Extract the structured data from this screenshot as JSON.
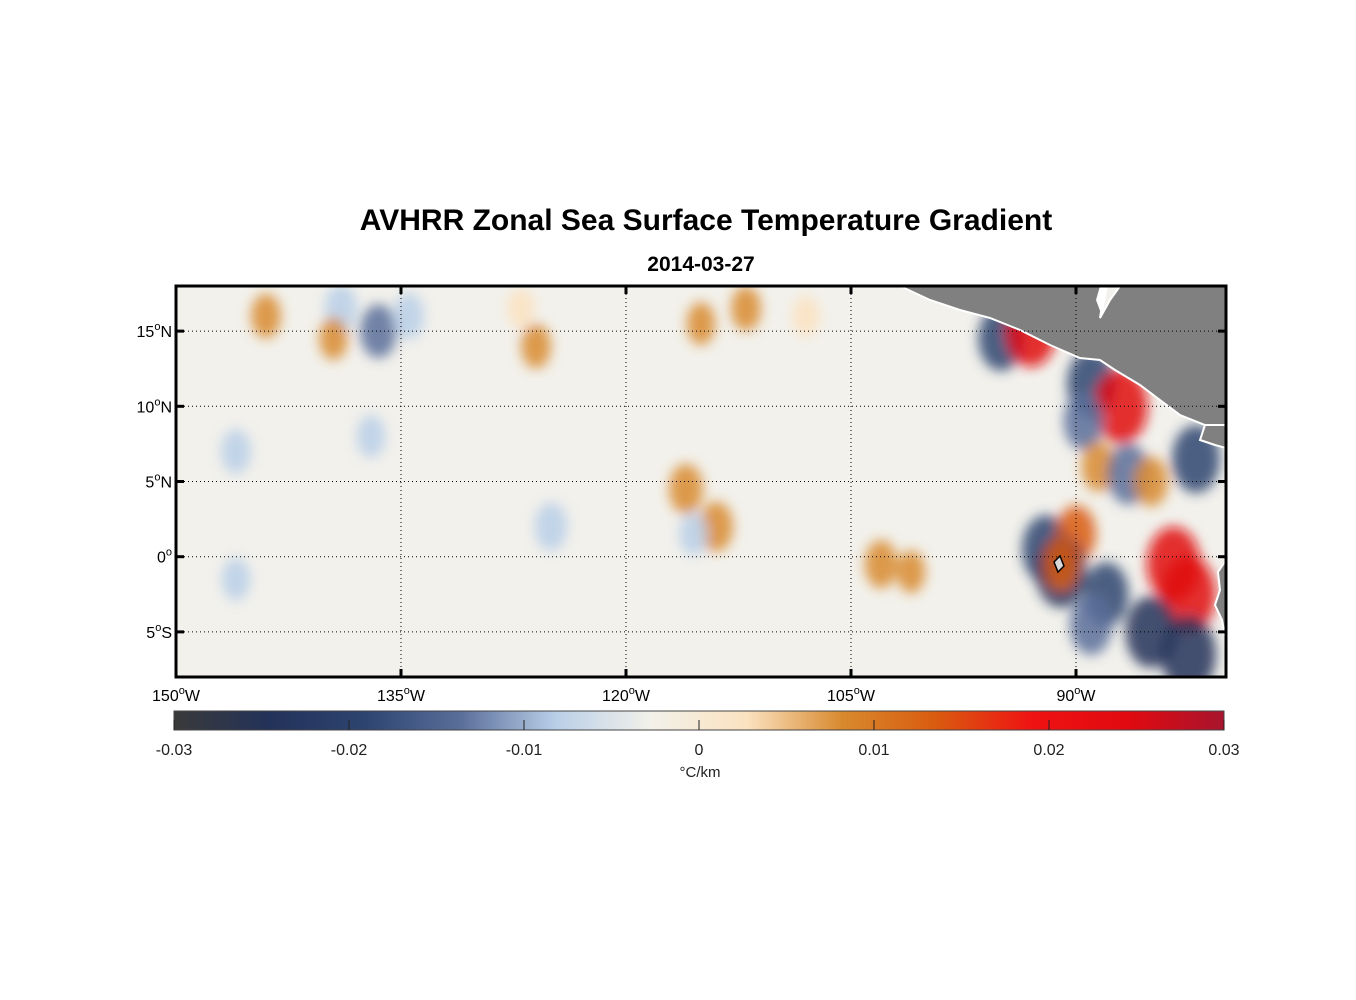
{
  "title": "AVHRR Zonal Sea Surface Temperature Gradient",
  "date": "2014-03-27",
  "lon_ticks": [
    {
      "value": -150,
      "deg": "150",
      "hemi": "W"
    },
    {
      "value": -135,
      "deg": "135",
      "hemi": "W"
    },
    {
      "value": -120,
      "deg": "120",
      "hemi": "W"
    },
    {
      "value": -105,
      "deg": "105",
      "hemi": "W"
    },
    {
      "value": -90,
      "deg": "90",
      "hemi": "W"
    }
  ],
  "lat_ticks": [
    {
      "value": 15,
      "deg": "15",
      "hemi": "N"
    },
    {
      "value": 10,
      "deg": "10",
      "hemi": "N"
    },
    {
      "value": 5,
      "deg": "5",
      "hemi": "N"
    },
    {
      "value": 0,
      "deg": "0",
      "hemi": ""
    },
    {
      "value": -5,
      "deg": "5",
      "hemi": "S"
    }
  ],
  "extent": {
    "lon_min": -150,
    "lon_max": -80,
    "lat_min": -8,
    "lat_max": 18
  },
  "colorbar": {
    "ticks": [
      "-0.03",
      "-0.02",
      "-0.01",
      "0",
      "0.01",
      "0.02",
      "0.03"
    ],
    "unit": "°C/km",
    "range": [
      -0.03,
      0.03
    ],
    "colors": [
      "#3a3a3a",
      "#233259",
      "#2d4470",
      "#5a6e9a",
      "#b9cfe8",
      "#f3f1ea",
      "#fbe2c0",
      "#d8892e",
      "#d95a10",
      "#f01212",
      "#e00a10",
      "#a8142e"
    ]
  },
  "land_color": "#808080",
  "features": [
    {
      "lon": -136.5,
      "lat": 15.0,
      "value": -0.012
    },
    {
      "lon": -139.0,
      "lat": 16.5,
      "value": -0.009
    },
    {
      "lon": -134.5,
      "lat": 16.0,
      "value": -0.008
    },
    {
      "lon": -144.0,
      "lat": 16.0,
      "value": 0.007
    },
    {
      "lon": -139.5,
      "lat": 14.5,
      "value": 0.006
    },
    {
      "lon": -126.0,
      "lat": 14.0,
      "value": 0.007
    },
    {
      "lon": -127.0,
      "lat": 16.5,
      "value": 0.005
    },
    {
      "lon": -115.0,
      "lat": 15.5,
      "value": 0.006
    },
    {
      "lon": -112.0,
      "lat": 16.5,
      "value": 0.007
    },
    {
      "lon": -108.0,
      "lat": 16.0,
      "value": 0.005
    },
    {
      "lon": -146.0,
      "lat": 7.0,
      "value": -0.007
    },
    {
      "lon": -137.0,
      "lat": 8.0,
      "value": -0.006
    },
    {
      "lon": -125.0,
      "lat": 2.0,
      "value": -0.009
    },
    {
      "lon": -116.0,
      "lat": 4.5,
      "value": 0.01
    },
    {
      "lon": -114.0,
      "lat": 2.0,
      "value": 0.01
    },
    {
      "lon": -115.5,
      "lat": 1.5,
      "value": -0.006
    },
    {
      "lon": -103.0,
      "lat": -0.5,
      "value": 0.009
    },
    {
      "lon": -101.0,
      "lat": -1.0,
      "value": 0.006
    },
    {
      "lon": -146.0,
      "lat": -1.5,
      "value": -0.006
    },
    {
      "lon": -95.0,
      "lat": 14.5,
      "value": -0.018
    },
    {
      "lon": -93.0,
      "lat": 15.0,
      "value": 0.022
    },
    {
      "lon": -89.0,
      "lat": 11.5,
      "value": -0.02
    },
    {
      "lon": -87.0,
      "lat": 10.0,
      "value": 0.024
    },
    {
      "lon": -89.5,
      "lat": 9.0,
      "value": -0.014
    },
    {
      "lon": -88.5,
      "lat": 6.0,
      "value": 0.01
    },
    {
      "lon": -86.5,
      "lat": 5.5,
      "value": -0.016
    },
    {
      "lon": -85.0,
      "lat": 5.0,
      "value": 0.01
    },
    {
      "lon": -82.0,
      "lat": 6.5,
      "value": -0.02
    },
    {
      "lon": -92.0,
      "lat": 0.5,
      "value": -0.02
    },
    {
      "lon": -90.0,
      "lat": 1.5,
      "value": 0.014
    },
    {
      "lon": -91.0,
      "lat": -1.0,
      "value": -0.022
    },
    {
      "lon": -91.0,
      "lat": -0.5,
      "value": 0.012
    },
    {
      "lon": -88.0,
      "lat": -2.5,
      "value": -0.018
    },
    {
      "lon": -83.5,
      "lat": -0.5,
      "value": 0.024
    },
    {
      "lon": -82.5,
      "lat": -2.5,
      "value": 0.025
    },
    {
      "lon": -85.0,
      "lat": -5.0,
      "value": -0.022
    },
    {
      "lon": -82.5,
      "lat": -6.5,
      "value": -0.025
    },
    {
      "lon": -89.0,
      "lat": -4.5,
      "value": -0.016
    }
  ]
}
